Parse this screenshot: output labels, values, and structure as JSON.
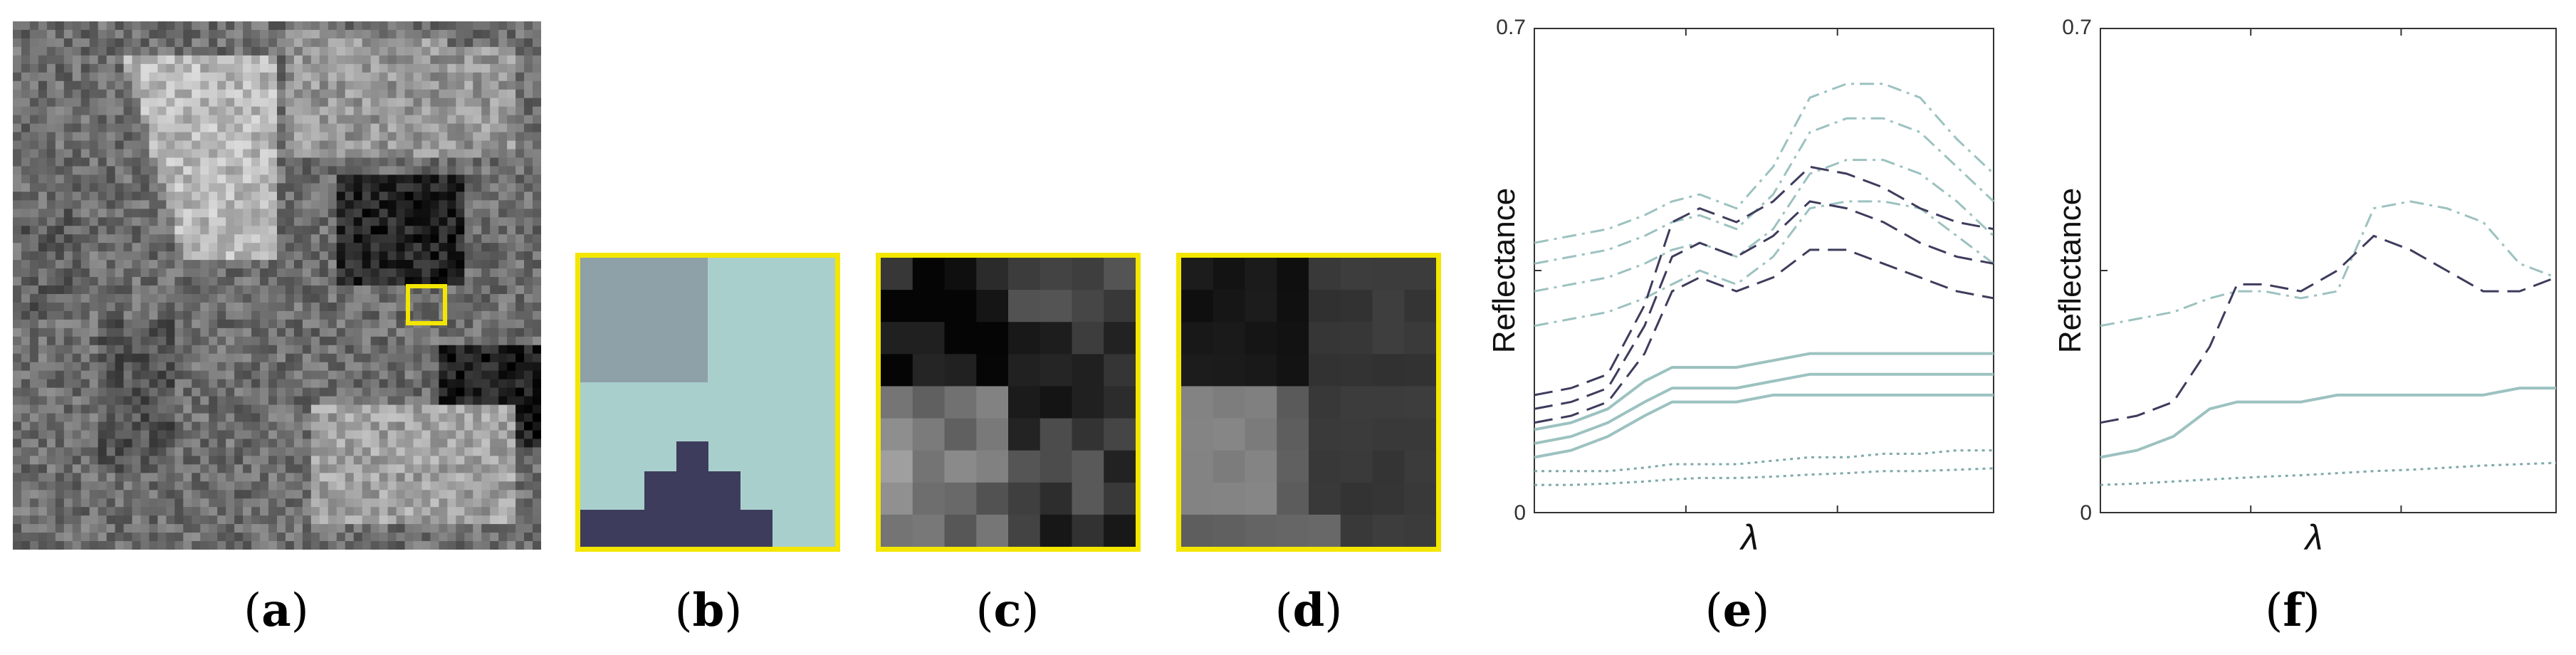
{
  "panels": {
    "a": {
      "caption_letter": "a"
    },
    "b": {
      "caption_letter": "b"
    },
    "c": {
      "caption_letter": "c"
    },
    "d": {
      "caption_letter": "d"
    },
    "e": {
      "caption_letter": "e"
    },
    "f": {
      "caption_letter": "f"
    }
  },
  "colors": {
    "highlight": "#f3e600",
    "dark_material": "#3e3c5c",
    "teal_material": "#9cc2c0",
    "gray_material": "#8ea0a8",
    "light_material": "#a9cfcd"
  },
  "chart_data": [
    {
      "type": "line",
      "panel": "e",
      "title": "",
      "xlabel": "λ",
      "ylabel": "Reflectance",
      "ylim": [
        0,
        0.7
      ],
      "ytick_labels": [
        "0",
        "0.7"
      ],
      "x": [
        0,
        0.08,
        0.16,
        0.24,
        0.3,
        0.36,
        0.44,
        0.52,
        0.6,
        0.68,
        0.76,
        0.84,
        0.92,
        1.0
      ],
      "series": [
        {
          "style": "dash-dot",
          "color": "#9cc2c0",
          "values": [
            0.39,
            0.4,
            0.41,
            0.43,
            0.45,
            0.46,
            0.44,
            0.5,
            0.6,
            0.62,
            0.62,
            0.6,
            0.54,
            0.49
          ]
        },
        {
          "style": "dash-dot",
          "color": "#9cc2c0",
          "values": [
            0.36,
            0.37,
            0.38,
            0.4,
            0.42,
            0.43,
            0.41,
            0.46,
            0.55,
            0.57,
            0.57,
            0.55,
            0.5,
            0.45
          ]
        },
        {
          "style": "dash-dot",
          "color": "#9cc2c0",
          "values": [
            0.32,
            0.33,
            0.34,
            0.36,
            0.38,
            0.39,
            0.37,
            0.41,
            0.49,
            0.51,
            0.51,
            0.49,
            0.45,
            0.4
          ]
        },
        {
          "style": "dash-dot",
          "color": "#9cc2c0",
          "values": [
            0.27,
            0.28,
            0.29,
            0.31,
            0.33,
            0.35,
            0.33,
            0.37,
            0.44,
            0.45,
            0.45,
            0.44,
            0.4,
            0.36
          ]
        },
        {
          "style": "dash",
          "color": "#3e3c5c",
          "values": [
            0.17,
            0.18,
            0.2,
            0.3,
            0.42,
            0.44,
            0.42,
            0.45,
            0.5,
            0.49,
            0.47,
            0.44,
            0.42,
            0.41
          ]
        },
        {
          "style": "dash",
          "color": "#3e3c5c",
          "values": [
            0.15,
            0.16,
            0.18,
            0.27,
            0.37,
            0.39,
            0.37,
            0.4,
            0.45,
            0.44,
            0.42,
            0.39,
            0.37,
            0.36
          ]
        },
        {
          "style": "dash",
          "color": "#3e3c5c",
          "values": [
            0.13,
            0.14,
            0.16,
            0.23,
            0.32,
            0.34,
            0.32,
            0.34,
            0.38,
            0.38,
            0.36,
            0.34,
            0.32,
            0.31
          ]
        },
        {
          "style": "solid",
          "color": "#9cc2c0",
          "values": [
            0.12,
            0.13,
            0.15,
            0.19,
            0.21,
            0.21,
            0.21,
            0.22,
            0.23,
            0.23,
            0.23,
            0.23,
            0.23,
            0.23
          ]
        },
        {
          "style": "solid",
          "color": "#9cc2c0",
          "values": [
            0.1,
            0.11,
            0.13,
            0.16,
            0.18,
            0.18,
            0.18,
            0.19,
            0.2,
            0.2,
            0.2,
            0.2,
            0.2,
            0.2
          ]
        },
        {
          "style": "solid",
          "color": "#9cc2c0",
          "values": [
            0.08,
            0.09,
            0.11,
            0.14,
            0.16,
            0.16,
            0.16,
            0.17,
            0.17,
            0.17,
            0.17,
            0.17,
            0.17,
            0.17
          ]
        },
        {
          "style": "dotted",
          "color": "#7fa9ab",
          "values": [
            0.06,
            0.06,
            0.06,
            0.065,
            0.07,
            0.07,
            0.07,
            0.075,
            0.08,
            0.08,
            0.085,
            0.085,
            0.09,
            0.09
          ]
        },
        {
          "style": "dotted",
          "color": "#7fa9ab",
          "values": [
            0.04,
            0.04,
            0.042,
            0.045,
            0.048,
            0.05,
            0.05,
            0.052,
            0.055,
            0.057,
            0.06,
            0.06,
            0.062,
            0.064
          ]
        }
      ]
    },
    {
      "type": "line",
      "panel": "f",
      "title": "",
      "xlabel": "λ",
      "ylabel": "Reflectance",
      "ylim": [
        0,
        0.7
      ],
      "ytick_labels": [
        "0",
        "0.7"
      ],
      "x": [
        0,
        0.08,
        0.16,
        0.24,
        0.3,
        0.36,
        0.44,
        0.52,
        0.6,
        0.68,
        0.76,
        0.84,
        0.92,
        1.0
      ],
      "series": [
        {
          "style": "dash-dot",
          "color": "#9cc2c0",
          "values": [
            0.27,
            0.28,
            0.29,
            0.31,
            0.32,
            0.32,
            0.31,
            0.32,
            0.44,
            0.45,
            0.44,
            0.42,
            0.36,
            0.34
          ]
        },
        {
          "style": "dash",
          "color": "#3e3c5c",
          "values": [
            0.13,
            0.14,
            0.16,
            0.24,
            0.33,
            0.33,
            0.32,
            0.35,
            0.4,
            0.38,
            0.35,
            0.32,
            0.32,
            0.34
          ]
        },
        {
          "style": "solid",
          "color": "#9cc2c0",
          "values": [
            0.08,
            0.09,
            0.11,
            0.15,
            0.16,
            0.16,
            0.16,
            0.17,
            0.17,
            0.17,
            0.17,
            0.17,
            0.18,
            0.18
          ]
        },
        {
          "style": "dotted",
          "color": "#7fa9ab",
          "values": [
            0.04,
            0.042,
            0.045,
            0.048,
            0.05,
            0.052,
            0.054,
            0.057,
            0.06,
            0.062,
            0.065,
            0.068,
            0.07,
            0.072
          ]
        }
      ]
    }
  ]
}
